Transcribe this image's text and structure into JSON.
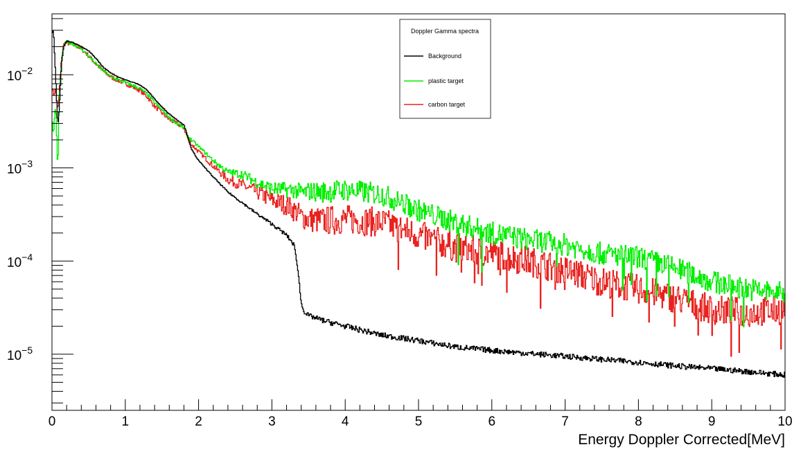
{
  "chart_data": {
    "type": "line",
    "style": "step-histogram",
    "title": "",
    "xlabel": "Energy Doppler Corrected[MeV]",
    "ylabel": "",
    "xlim": [
      0,
      10
    ],
    "ylim": [
      2.5e-06,
      0.045
    ],
    "yscale": "log",
    "grid": false,
    "legend": {
      "position": "top-center",
      "header": "Doppler Gamma spectra",
      "entries": [
        "Background",
        "plastic target",
        "carbon target"
      ]
    },
    "x_ticks": [
      "0",
      "1",
      "2",
      "3",
      "4",
      "5",
      "6",
      "7",
      "8",
      "9",
      "10"
    ],
    "y_ticks": [
      {
        "base": "10",
        "exp": "−2",
        "value": 0.01
      },
      {
        "base": "10",
        "exp": "−3",
        "value": 0.001
      },
      {
        "base": "10",
        "exp": "−4",
        "value": 0.0001
      },
      {
        "base": "10",
        "exp": "−5",
        "value": 1e-05
      }
    ],
    "x": [
      0,
      0.02,
      0.05,
      0.08,
      0.1,
      0.13,
      0.16,
      0.2,
      0.3,
      0.4,
      0.5,
      0.6,
      0.7,
      0.8,
      0.9,
      1.0,
      1.1,
      1.2,
      1.3,
      1.4,
      1.5,
      1.6,
      1.7,
      1.8,
      1.85,
      1.9,
      2.0,
      2.2,
      2.4,
      2.6,
      2.8,
      3.0,
      3.2,
      3.3,
      3.35,
      3.4,
      3.45,
      3.5,
      3.7,
      4.0,
      4.5,
      5.0,
      5.5,
      6.0,
      6.5,
      7.0,
      7.5,
      8.0,
      8.5,
      9.0,
      9.5,
      10.0
    ],
    "series": [
      {
        "name": "Background",
        "color": "#000000",
        "values": [
          0.028,
          0.03,
          0.01,
          0.0028,
          0.0045,
          0.013,
          0.02,
          0.023,
          0.022,
          0.02,
          0.018,
          0.015,
          0.012,
          0.0105,
          0.0095,
          0.0088,
          0.0083,
          0.0078,
          0.0068,
          0.0055,
          0.0045,
          0.0038,
          0.0033,
          0.0029,
          0.0022,
          0.0016,
          0.0012,
          0.0008,
          0.00055,
          0.00042,
          0.00032,
          0.00025,
          0.00019,
          0.00015,
          9e-05,
          3.5e-05,
          2.8e-05,
          2.6e-05,
          2.3e-05,
          2e-05,
          1.6e-05,
          1.4e-05,
          1.2e-05,
          1.1e-05,
          1.02e-05,
          9.5e-06,
          8.8e-06,
          8.2e-06,
          7.5e-06,
          7e-06,
          6.5e-06,
          6e-06
        ]
      },
      {
        "name": "plastic target",
        "color": "#00ee00",
        "values": [
          0.0035,
          0.0022,
          0.005,
          0.0009,
          0.0055,
          0.014,
          0.02,
          0.023,
          0.021,
          0.019,
          0.016,
          0.013,
          0.011,
          0.0095,
          0.0088,
          0.0082,
          0.0077,
          0.0071,
          0.0062,
          0.005,
          0.0042,
          0.0035,
          0.003,
          0.0027,
          0.0022,
          0.002,
          0.0017,
          0.0012,
          0.0009,
          0.00085,
          0.0007,
          0.0006,
          0.00058,
          0.00058,
          0.00056,
          0.00055,
          0.00054,
          0.00056,
          0.00055,
          0.00058,
          0.00052,
          0.00035,
          0.00026,
          0.0002,
          0.00017,
          0.00015,
          0.00012,
          0.00011,
          8.5e-05,
          6e-05,
          5e-05,
          4.5e-05
        ]
      },
      {
        "name": "carbon target",
        "color": "#e8221f",
        "values": [
          0.008,
          0.006,
          0.007,
          0.004,
          0.0065,
          0.015,
          0.021,
          0.022,
          0.021,
          0.019,
          0.016,
          0.013,
          0.011,
          0.0095,
          0.0087,
          0.0081,
          0.0074,
          0.0068,
          0.0058,
          0.0046,
          0.0039,
          0.0033,
          0.003,
          0.0027,
          0.0021,
          0.0018,
          0.0015,
          0.00105,
          0.00075,
          0.00065,
          0.00055,
          0.00045,
          0.0004,
          0.00035,
          0.00033,
          0.0003,
          0.00029,
          0.00028,
          0.00027,
          0.00028,
          0.00026,
          0.00019,
          0.00014,
          0.00012,
          0.0001,
          8e-05,
          6e-05,
          5e-05,
          4e-05,
          3e-05,
          2.8e-05,
          3e-05
        ]
      }
    ]
  }
}
